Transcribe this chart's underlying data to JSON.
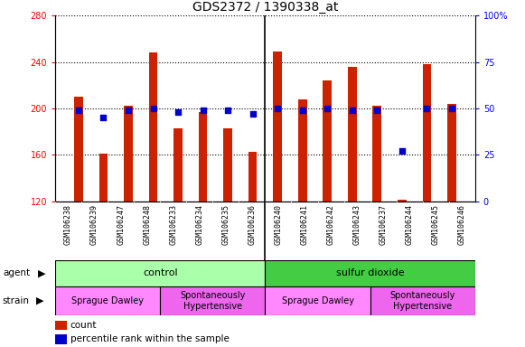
{
  "title": "GDS2372 / 1390338_at",
  "samples": [
    "GSM106238",
    "GSM106239",
    "GSM106247",
    "GSM106248",
    "GSM106233",
    "GSM106234",
    "GSM106235",
    "GSM106236",
    "GSM106240",
    "GSM106241",
    "GSM106242",
    "GSM106243",
    "GSM106237",
    "GSM106244",
    "GSM106245",
    "GSM106246"
  ],
  "counts": [
    210,
    161,
    202,
    248,
    183,
    197,
    183,
    163,
    249,
    208,
    224,
    236,
    202,
    121,
    238,
    204
  ],
  "percentile_ranks": [
    49,
    45,
    49,
    50,
    48,
    49,
    49,
    47,
    50,
    49,
    50,
    49,
    49,
    27,
    50,
    50
  ],
  "bar_bottom": 120,
  "ylim_left": [
    120,
    280
  ],
  "ylim_right": [
    0,
    100
  ],
  "yticks_left": [
    120,
    160,
    200,
    240,
    280
  ],
  "yticks_right": [
    0,
    25,
    50,
    75,
    100
  ],
  "bar_color": "#cc2200",
  "dot_color": "#0000cc",
  "bar_width": 0.35,
  "agent_groups": [
    {
      "label": "control",
      "start": 0,
      "end": 8,
      "color": "#aaffaa"
    },
    {
      "label": "sulfur dioxide",
      "start": 8,
      "end": 16,
      "color": "#44cc44"
    }
  ],
  "strain_groups": [
    {
      "label": "Sprague Dawley",
      "start": 0,
      "end": 4,
      "color": "#ff88ff"
    },
    {
      "label": "Spontaneously\nHypertensive",
      "start": 4,
      "end": 8,
      "color": "#ee66ee"
    },
    {
      "label": "Sprague Dawley",
      "start": 8,
      "end": 12,
      "color": "#ff88ff"
    },
    {
      "label": "Spontaneously\nHypertensive",
      "start": 12,
      "end": 16,
      "color": "#ee66ee"
    }
  ],
  "bg_color": "#ffffff",
  "tick_area_color": "#cccccc",
  "legend_items": [
    {
      "label": "count",
      "color": "#cc2200"
    },
    {
      "label": "percentile rank within the sample",
      "color": "#0000cc"
    }
  ],
  "title_fontsize": 10,
  "tick_fontsize": 7,
  "label_fontsize": 8,
  "dot_size": 25
}
